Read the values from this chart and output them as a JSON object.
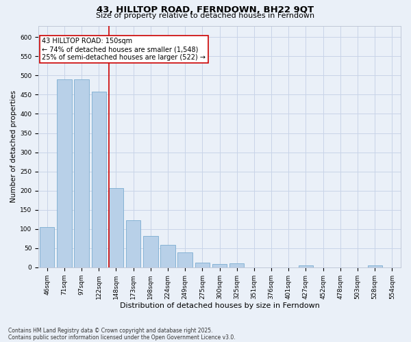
{
  "title": "43, HILLTOP ROAD, FERNDOWN, BH22 9QT",
  "subtitle": "Size of property relative to detached houses in Ferndown",
  "xlabel": "Distribution of detached houses by size in Ferndown",
  "ylabel": "Number of detached properties",
  "categories": [
    "46sqm",
    "71sqm",
    "97sqm",
    "122sqm",
    "148sqm",
    "173sqm",
    "198sqm",
    "224sqm",
    "249sqm",
    "275sqm",
    "300sqm",
    "325sqm",
    "351sqm",
    "376sqm",
    "401sqm",
    "427sqm",
    "452sqm",
    "478sqm",
    "503sqm",
    "528sqm",
    "554sqm"
  ],
  "values": [
    105,
    490,
    490,
    458,
    207,
    123,
    82,
    58,
    39,
    13,
    8,
    10,
    0,
    0,
    0,
    5,
    0,
    0,
    0,
    5,
    0
  ],
  "bar_color": "#b8d0e8",
  "bar_edgecolor": "#7aacd0",
  "annotation_text_line1": "43 HILLTOP ROAD: 150sqm",
  "annotation_text_line2": "← 74% of detached houses are smaller (1,548)",
  "annotation_text_line3": "25% of semi-detached houses are larger (522) →",
  "annotation_box_color": "#ffffff",
  "annotation_box_edgecolor": "#cc0000",
  "vline_color": "#cc0000",
  "grid_color": "#c8d4e8",
  "bg_color": "#eaf0f8",
  "footer_line1": "Contains HM Land Registry data © Crown copyright and database right 2025.",
  "footer_line2": "Contains public sector information licensed under the Open Government Licence v3.0.",
  "ylim": [
    0,
    630
  ],
  "yticks": [
    0,
    50,
    100,
    150,
    200,
    250,
    300,
    350,
    400,
    450,
    500,
    550,
    600
  ],
  "title_fontsize": 9.5,
  "subtitle_fontsize": 8,
  "tick_fontsize": 6.5,
  "ylabel_fontsize": 7.5,
  "xlabel_fontsize": 8,
  "footer_fontsize": 5.5,
  "annot_fontsize": 7
}
